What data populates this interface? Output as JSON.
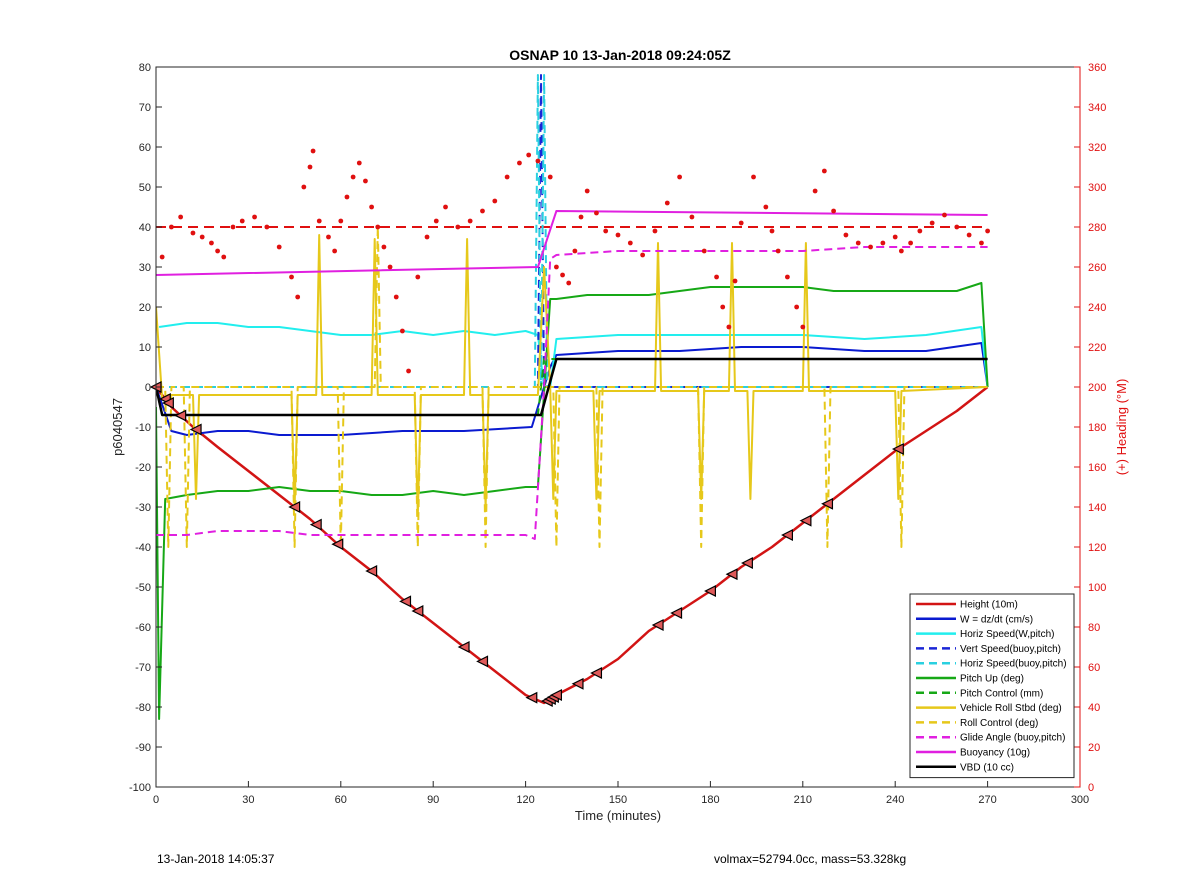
{
  "chart_data": {
    "type": "line",
    "title": "OSNAP 10 13-Jan-2018 09:24:05Z",
    "xlabel": "Time (minutes)",
    "ylabel_left": "p6040547",
    "ylabel_right": "(+) Heading (°M)",
    "xlim": [
      0,
      300
    ],
    "ylim_left": [
      -100,
      80
    ],
    "ylim_right": [
      0,
      360
    ],
    "x_ticks": [
      "0",
      "30",
      "60",
      "90",
      "120",
      "150",
      "180",
      "210",
      "240",
      "270",
      "300"
    ],
    "y_ticks_left": [
      "-100",
      "-90",
      "-80",
      "-70",
      "-60",
      "-50",
      "-40",
      "-30",
      "-20",
      "-10",
      "0",
      "10",
      "20",
      "30",
      "40",
      "50",
      "60",
      "70",
      "80"
    ],
    "y_ticks_right": [
      "0",
      "20",
      "40",
      "60",
      "80",
      "100",
      "120",
      "140",
      "160",
      "180",
      "200",
      "220",
      "240",
      "260",
      "280",
      "300",
      "320",
      "340",
      "360"
    ],
    "grid": false,
    "legend_position": "bottom-right",
    "colors": {
      "height": "#d21414",
      "w": "#0a1ad0",
      "hspeed": "#22eeee",
      "vspeed_buoy": "#1a26d6",
      "hspeed_buoy": "#2ad0e0",
      "pitch": "#16a816",
      "pitch_ctrl": "#16a816",
      "roll": "#e6c81a",
      "roll_ctrl": "#e6c81a",
      "glide": "#e020e0",
      "buoyancy": "#e020e0",
      "vbd": "#000000",
      "heading": "#e01010",
      "right_axis": "#e01010"
    },
    "series": [
      {
        "name": "Height (10m)",
        "style": "solid",
        "color_key": "height",
        "x": [
          0,
          5,
          12,
          20,
          30,
          40,
          50,
          60,
          70,
          80,
          90,
          100,
          110,
          120,
          126,
          130,
          140,
          150,
          160,
          170,
          180,
          190,
          200,
          210,
          220,
          230,
          240,
          250,
          260,
          270
        ],
        "y": [
          0,
          -5,
          -10,
          -15,
          -21,
          -27,
          -33,
          -40,
          -46,
          -53,
          -59,
          -65,
          -71,
          -77,
          -79,
          -77,
          -73,
          -68,
          -61,
          -56,
          -51,
          -45,
          -40,
          -34,
          -28,
          -22,
          -16,
          -11,
          -6,
          0
        ]
      },
      {
        "name": "W = dz/dt (cm/s)",
        "style": "solid",
        "color_key": "w",
        "x": [
          0,
          5,
          10,
          20,
          30,
          40,
          60,
          80,
          100,
          122,
          124,
          126,
          128,
          130,
          150,
          170,
          190,
          210,
          230,
          250,
          268,
          270
        ],
        "y": [
          0,
          -11,
          -12,
          -11,
          -11,
          -12,
          -12,
          -11,
          -11,
          -10,
          -5,
          0,
          5,
          8,
          9,
          9,
          10,
          10,
          9,
          9,
          11,
          0
        ]
      },
      {
        "name": "Horiz Speed(W,pitch)",
        "style": "solid",
        "color_key": "hspeed",
        "x": [
          1,
          10,
          20,
          30,
          40,
          50,
          60,
          70,
          80,
          90,
          100,
          110,
          120,
          124,
          126,
          128,
          130,
          150,
          170,
          190,
          210,
          230,
          250,
          268,
          270
        ],
        "y": [
          15,
          16,
          16,
          15,
          15,
          14,
          13,
          13,
          14,
          13,
          14,
          13,
          14,
          13,
          0,
          0,
          12,
          13,
          13,
          13,
          13,
          12,
          13,
          15,
          0
        ]
      },
      {
        "name": "Vert Speed(buoy,pitch)",
        "style": "dashed",
        "color_key": "vspeed_buoy",
        "x": [
          0,
          124,
          125,
          126,
          127,
          128,
          129,
          130,
          270
        ],
        "y": [
          0,
          0,
          78,
          0,
          0,
          0,
          0,
          0,
          0
        ]
      },
      {
        "name": "Horiz Speed(buoy,pitch)",
        "style": "dashed",
        "color_key": "hspeed_buoy",
        "x": [
          0,
          123,
          124,
          125,
          126,
          127,
          130,
          270
        ],
        "y": [
          0,
          0,
          78,
          0,
          78,
          0,
          0,
          0
        ]
      },
      {
        "name": "Pitch Up (deg)",
        "style": "solid",
        "color_key": "pitch",
        "x": [
          0,
          1,
          3,
          10,
          20,
          30,
          40,
          50,
          60,
          70,
          80,
          90,
          100,
          110,
          120,
          124,
          128,
          130,
          140,
          150,
          160,
          170,
          180,
          190,
          200,
          210,
          220,
          230,
          240,
          250,
          260,
          268,
          270
        ],
        "y": [
          -5,
          -83,
          -28,
          -27,
          -26,
          -26,
          -25,
          -26,
          -26,
          -27,
          -27,
          -26,
          -27,
          -26,
          -25,
          -25,
          22,
          22,
          23,
          23,
          23,
          24,
          25,
          25,
          25,
          25,
          24,
          24,
          24,
          24,
          24,
          26,
          0
        ]
      },
      {
        "name": "Pitch Control (mm)",
        "style": "dashed",
        "color_key": "pitch_ctrl",
        "x": [
          0,
          2,
          124,
          126,
          130,
          270
        ],
        "y": [
          0,
          -7,
          -7,
          7,
          7,
          7
        ]
      },
      {
        "name": "Vehicle Roll Stbd (deg)",
        "style": "solid",
        "color_key": "roll",
        "x": [
          0,
          2,
          4,
          8,
          12,
          13,
          14,
          30,
          44,
          45,
          46,
          52,
          53,
          54,
          70,
          71,
          72,
          84,
          85,
          86,
          100,
          101,
          102,
          106,
          107,
          108,
          124,
          126,
          128,
          129,
          130,
          142,
          143,
          144,
          162,
          163,
          164,
          176,
          177,
          178,
          186,
          187,
          188,
          192,
          193,
          194,
          210,
          211,
          212,
          230,
          240,
          241,
          242,
          270
        ],
        "y": [
          20,
          -3,
          -2,
          -2,
          -2,
          -28,
          -2,
          -2,
          -2,
          -30,
          -2,
          -2,
          38,
          -2,
          -2,
          37,
          -2,
          -2,
          -32,
          -2,
          -2,
          37,
          -2,
          -2,
          -30,
          -2,
          -2,
          30,
          0,
          -28,
          -1,
          -1,
          -28,
          -1,
          -1,
          36,
          -1,
          -1,
          -28,
          -1,
          -1,
          36,
          -1,
          -1,
          -28,
          -1,
          -1,
          36,
          -1,
          -1,
          -1,
          -28,
          -1,
          0
        ]
      },
      {
        "name": "Roll Control (deg)",
        "style": "dashed",
        "color_key": "roll_ctrl",
        "x": [
          0,
          3,
          4,
          5,
          9,
          10,
          11,
          44,
          45,
          46,
          59,
          60,
          61,
          71,
          72,
          73,
          84,
          85,
          86,
          106,
          107,
          108,
          129,
          130,
          131,
          143,
          144,
          145,
          176,
          177,
          178,
          217,
          218,
          219,
          241,
          242,
          243,
          270
        ],
        "y": [
          0,
          0,
          -40,
          0,
          0,
          -40,
          0,
          0,
          -40,
          0,
          0,
          -40,
          0,
          0,
          40,
          0,
          0,
          -40,
          0,
          0,
          -40,
          0,
          0,
          -40,
          0,
          0,
          -40,
          0,
          0,
          -40,
          0,
          0,
          -40,
          0,
          0,
          -40,
          0,
          0
        ]
      },
      {
        "name": "Glide Angle (buoy,pitch)",
        "style": "dashed",
        "color_key": "glide",
        "x": [
          0,
          10,
          20,
          30,
          40,
          50,
          60,
          70,
          80,
          90,
          100,
          110,
          120,
          123,
          126,
          128,
          130,
          150,
          170,
          190,
          210,
          230,
          250,
          270
        ],
        "y": [
          -37,
          -37,
          -36,
          -36,
          -36,
          -37,
          -37,
          -37,
          -37,
          -37,
          -37,
          -37,
          -37,
          -38,
          0,
          32,
          33,
          34,
          34,
          34,
          34,
          35,
          35,
          35
        ]
      },
      {
        "name": "Buoyancy (10g)",
        "style": "solid",
        "color_key": "buoyancy",
        "x": [
          0,
          124,
          130,
          270
        ],
        "y": [
          28,
          30,
          44,
          43
        ]
      },
      {
        "name": "VBD (10 cc)",
        "style": "solid",
        "color_key": "vbd",
        "x": [
          0,
          2,
          125,
          130,
          270
        ],
        "y": [
          0,
          -7,
          -7,
          7,
          7
        ]
      }
    ],
    "heading_series": {
      "axis": "right",
      "marker": "dots",
      "color_key": "heading",
      "reference_y": 280,
      "x": [
        2,
        5,
        8,
        12,
        15,
        18,
        20,
        22,
        25,
        28,
        32,
        36,
        40,
        44,
        46,
        48,
        50,
        51,
        53,
        56,
        58,
        60,
        62,
        64,
        66,
        68,
        70,
        72,
        74,
        76,
        78,
        80,
        82,
        85,
        88,
        91,
        94,
        98,
        102,
        106,
        110,
        114,
        118,
        121,
        124,
        128,
        130,
        132,
        134,
        136,
        138,
        140,
        143,
        146,
        150,
        154,
        158,
        162,
        166,
        170,
        174,
        178,
        182,
        184,
        186,
        188,
        190,
        194,
        198,
        200,
        202,
        205,
        208,
        210,
        214,
        217,
        220,
        224,
        228,
        232,
        236,
        240,
        242,
        245,
        248,
        252,
        256,
        260,
        264,
        268,
        270
      ],
      "y": [
        265,
        280,
        285,
        277,
        275,
        272,
        268,
        265,
        280,
        283,
        285,
        280,
        270,
        255,
        245,
        300,
        310,
        318,
        283,
        275,
        268,
        283,
        295,
        305,
        312,
        303,
        290,
        280,
        270,
        260,
        245,
        228,
        208,
        255,
        275,
        283,
        290,
        280,
        283,
        288,
        293,
        305,
        312,
        316,
        313,
        305,
        260,
        256,
        252,
        268,
        285,
        298,
        287,
        278,
        276,
        272,
        266,
        278,
        292,
        305,
        285,
        268,
        255,
        240,
        230,
        253,
        282,
        305,
        290,
        278,
        268,
        255,
        240,
        230,
        298,
        308,
        288,
        276,
        272,
        270,
        272,
        275,
        268,
        272,
        278,
        282,
        286,
        280,
        276,
        272,
        278
      ]
    },
    "height_markers": {
      "marker": "triangles",
      "x": [
        0,
        3,
        4,
        8,
        13,
        45,
        52,
        59,
        70,
        81,
        85,
        100,
        106,
        122,
        127,
        128,
        129,
        130,
        137,
        143,
        163,
        169,
        180,
        187,
        192,
        205,
        211,
        218,
        241
      ]
    }
  },
  "legend": {
    "entries": [
      {
        "label": "Height (10m)",
        "color_key": "height",
        "style": "solid"
      },
      {
        "label": "W = dz/dt (cm/s)",
        "color_key": "w",
        "style": "solid"
      },
      {
        "label": "Horiz Speed(W,pitch)",
        "color_key": "hspeed",
        "style": "solid"
      },
      {
        "label": "Vert Speed(buoy,pitch)",
        "color_key": "vspeed_buoy",
        "style": "dashed"
      },
      {
        "label": "Horiz Speed(buoy,pitch)",
        "color_key": "hspeed_buoy",
        "style": "dashed"
      },
      {
        "label": "Pitch Up (deg)",
        "color_key": "pitch",
        "style": "solid"
      },
      {
        "label": "Pitch Control (mm)",
        "color_key": "pitch_ctrl",
        "style": "dashed"
      },
      {
        "label": "Vehicle Roll Stbd (deg)",
        "color_key": "roll",
        "style": "solid"
      },
      {
        "label": "Roll Control (deg)",
        "color_key": "roll_ctrl",
        "style": "dashed"
      },
      {
        "label": "Glide Angle (buoy,pitch)",
        "color_key": "glide",
        "style": "dashed"
      },
      {
        "label": "Buoyancy (10g)",
        "color_key": "buoyancy",
        "style": "solid"
      },
      {
        "label": "VBD (10 cc)",
        "color_key": "vbd",
        "style": "solid"
      }
    ]
  },
  "footer": {
    "left": "13-Jan-2018 14:05:37",
    "right": "volmax=52794.0cc, mass=53.328kg"
  }
}
